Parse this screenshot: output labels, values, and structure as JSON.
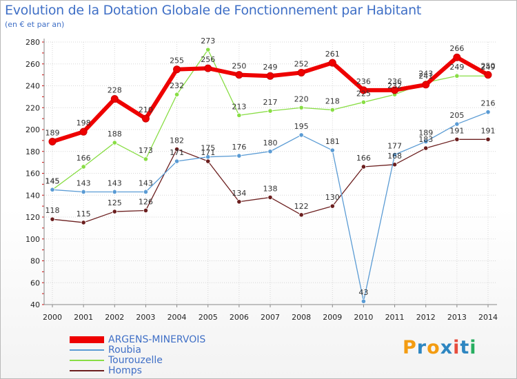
{
  "chart_data": {
    "type": "line",
    "title": "Evolution de la Dotation Globale de Fonctionnement par Habitant",
    "subtitle": "(en € et par an)",
    "xlabel": "",
    "ylabel": "",
    "x": [
      "2000",
      "2001",
      "2002",
      "2003",
      "2004",
      "2005",
      "2006",
      "2007",
      "2008",
      "2009",
      "2010",
      "2011",
      "2012",
      "2013",
      "2014"
    ],
    "ylim": [
      40,
      280
    ],
    "yticks": [
      40,
      60,
      80,
      100,
      120,
      140,
      160,
      180,
      200,
      220,
      240,
      260,
      280
    ],
    "grid": true,
    "legend_position": "bottom-left",
    "series": [
      {
        "name": "ARGENS-MINERVOIS",
        "color": "#ee0000",
        "values": [
          189,
          198,
          228,
          210,
          255,
          256,
          250,
          249,
          252,
          261,
          236,
          236,
          241,
          266,
          250
        ]
      },
      {
        "name": "Roubia",
        "color": "#5a9bd4",
        "values": [
          145,
          143,
          143,
          143,
          171,
          175,
          176,
          180,
          195,
          181,
          43,
          177,
          189,
          205,
          216
        ]
      },
      {
        "name": "Tourouzelle",
        "color": "#88dd44",
        "values": [
          145,
          166,
          188,
          173,
          232,
          273,
          213,
          217,
          220,
          218,
          225,
          232,
          243,
          249,
          249
        ]
      },
      {
        "name": "Homps",
        "color": "#6b1e1e",
        "values": [
          118,
          115,
          125,
          126,
          182,
          171,
          134,
          138,
          122,
          130,
          166,
          168,
          183,
          191,
          191
        ]
      }
    ]
  },
  "logo": {
    "text": "Proxiti",
    "letters": [
      "P",
      "r",
      "o",
      "x",
      "i",
      "t",
      "i"
    ],
    "colors": [
      "#f39c12",
      "#2e86c1",
      "#f39c12",
      "#2e86c1",
      "#e74c3c",
      "#2e86c1",
      "#27ae60"
    ]
  }
}
